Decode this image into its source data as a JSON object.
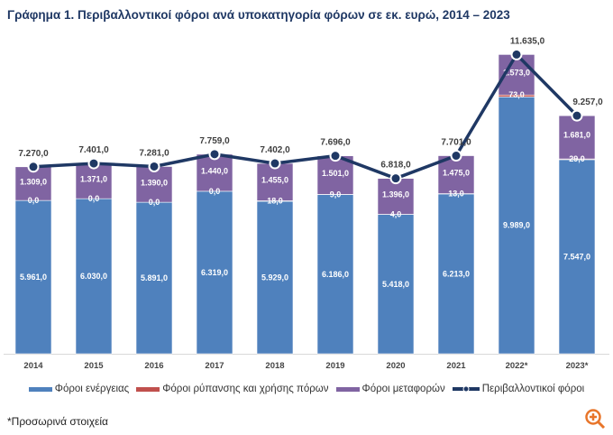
{
  "chart_data": {
    "type": "bar",
    "stacked": true,
    "title": "Γράφημα 1. Περιβαλλοντικοί φόροι ανά υποκατηγορία φόρων σε εκ. ευρώ, 2014 – 2023",
    "categories": [
      "2014",
      "2015",
      "2016",
      "2017",
      "2018",
      "2019",
      "2020",
      "2021",
      "2022*",
      "2023*"
    ],
    "series": [
      {
        "name": "Φόροι ενέργειας",
        "color": "#4f81bd",
        "values": [
          5961,
          6030,
          5891,
          6319,
          5929,
          6186,
          5418,
          6213,
          9989,
          7547
        ],
        "labels": [
          "5.961,0",
          "6.030,0",
          "5.891,0",
          "6.319,0",
          "5.929,0",
          "6.186,0",
          "5.418,0",
          "6.213,0",
          "9.989,0",
          "7.547,0"
        ]
      },
      {
        "name": "Φόροι ρύπανσης και χρήσης πόρων",
        "color": "#c0504d",
        "values": [
          0,
          0,
          0,
          0,
          18,
          9,
          4,
          13,
          73,
          29
        ],
        "labels": [
          "0,0",
          "0,0",
          "0,0",
          "0,0",
          "18,0",
          "9,0",
          "4,0",
          "13,0",
          "73,0",
          "29,0"
        ]
      },
      {
        "name": "Φόροι μεταφορών",
        "color": "#8064a2",
        "values": [
          1309,
          1371,
          1390,
          1440,
          1455,
          1501,
          1396,
          1475,
          1573,
          1681
        ],
        "labels": [
          "1.309,0",
          "1.371,0",
          "1.390,0",
          "1.440,0",
          "1.455,0",
          "1.501,0",
          "1.396,0",
          "1.475,0",
          "1.573,0",
          "1.681,0"
        ]
      }
    ],
    "line": {
      "name": "Περιβαλλοντικοί φόροι",
      "color": "#1f3864",
      "values": [
        7270,
        7401,
        7281,
        7759,
        7402,
        7696,
        6818,
        7701,
        11635,
        9257
      ],
      "labels": [
        "7.270,0",
        "7.401,0",
        "7.281,0",
        "7.759,0",
        "7.402,0",
        "7.696,0",
        "6.818,0",
        "7.701,0",
        "11.635,0",
        "9.257,0"
      ]
    },
    "legend_position": "bottom",
    "grid": false,
    "y_axis_visible": false
  },
  "footnote": "*Προσωρινά στοιχεία",
  "zoom_icon": "zoom-in-icon",
  "zoom_color": "#e8752a"
}
